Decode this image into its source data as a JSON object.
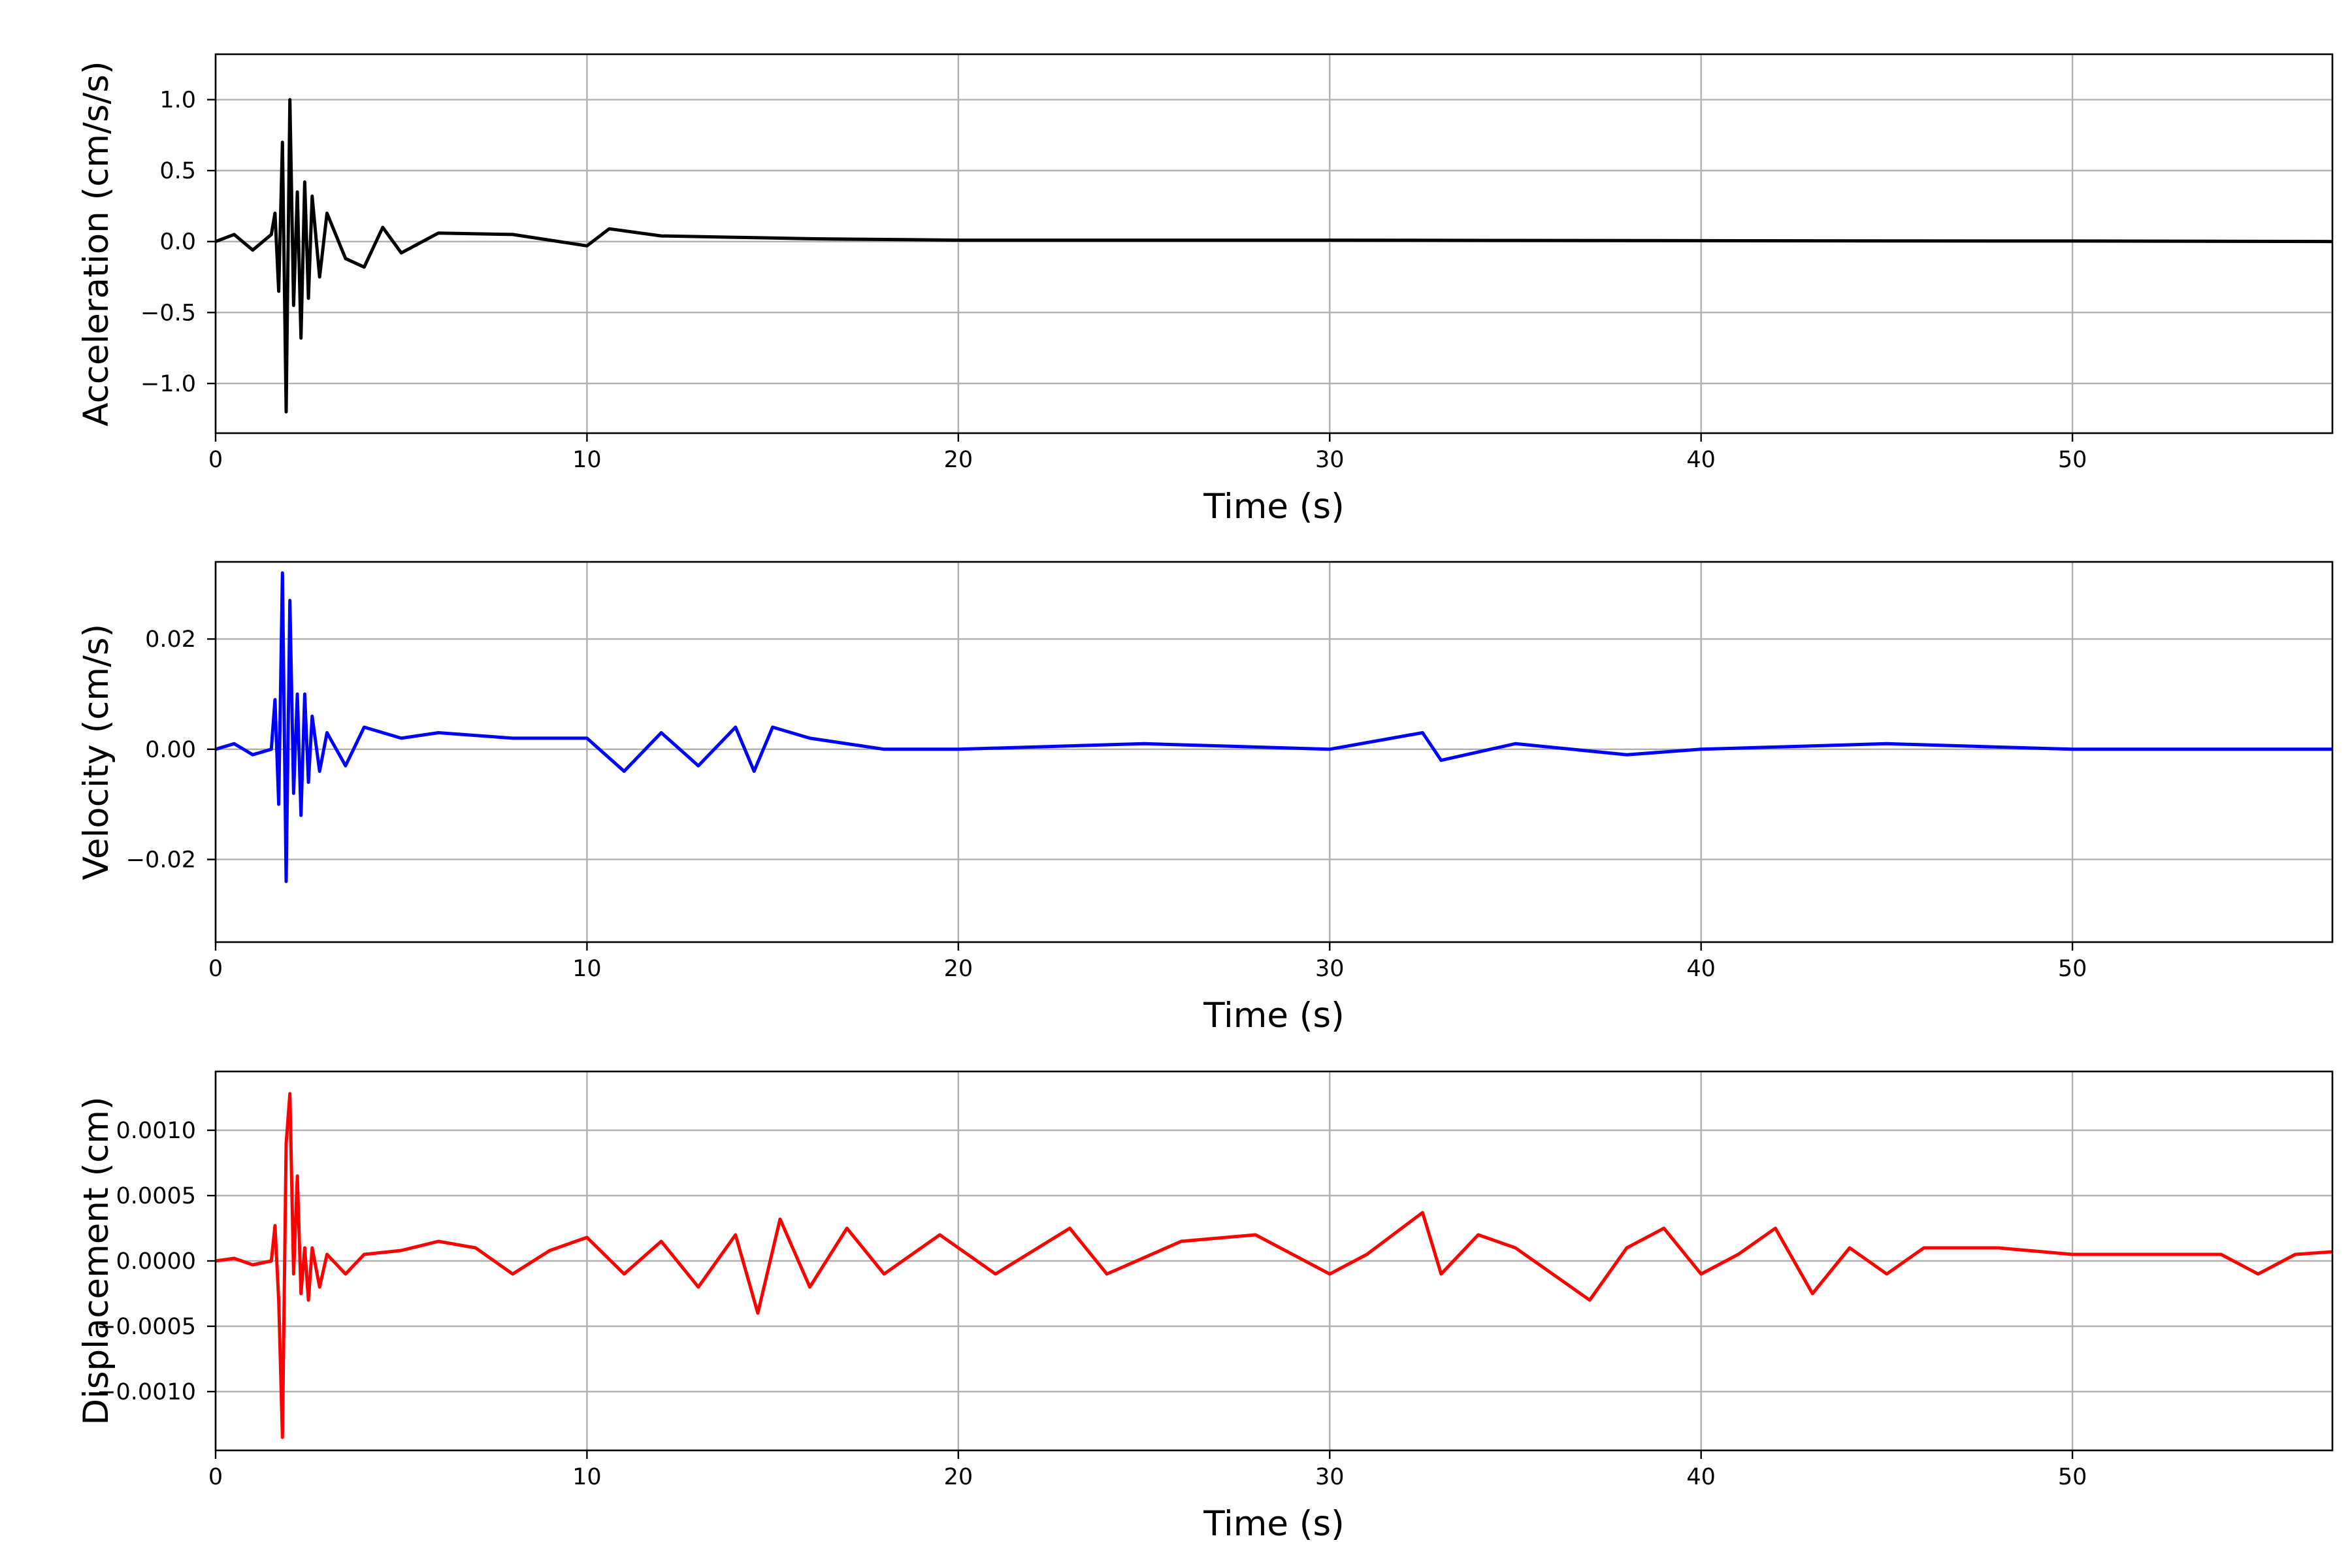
{
  "chart_data": [
    {
      "type": "line",
      "color": "#000000",
      "xlabel": "Time (s)",
      "ylabel": "Acceleration (cm/s/s)",
      "xlim": [
        0,
        57
      ],
      "ylim": [
        -1.35,
        1.32
      ],
      "grid": true,
      "xticks": [
        0,
        10,
        20,
        30,
        40,
        50
      ],
      "xtick_labels": [
        "0",
        "10",
        "20",
        "30",
        "40",
        "50"
      ],
      "yticks": [
        1.0,
        0.5,
        0.0,
        -0.5,
        -1.0
      ],
      "ytick_labels": [
        "1.0",
        "0.5",
        "0.0",
        "−0.5",
        "−1.0"
      ],
      "series": [
        {
          "x": [
            0,
            0.5,
            1.0,
            1.5,
            1.6,
            1.7,
            1.8,
            1.9,
            2.0,
            2.1,
            2.2,
            2.3,
            2.4,
            2.5,
            2.6,
            2.8,
            3.0,
            3.5,
            4.0,
            4.5,
            5.0,
            6.0,
            8.0,
            10.0,
            10.6,
            12.0,
            14.0,
            16.0,
            18.0,
            20.0,
            25.0,
            30.0,
            35.0,
            40.0,
            45.0,
            50.0,
            57.0
          ],
          "y": [
            0.0,
            0.05,
            -0.06,
            0.05,
            0.2,
            -0.35,
            0.7,
            -1.2,
            1.0,
            -0.45,
            0.35,
            -0.68,
            0.42,
            -0.4,
            0.32,
            -0.25,
            0.2,
            -0.12,
            -0.18,
            0.1,
            -0.08,
            0.06,
            0.05,
            -0.03,
            0.09,
            0.04,
            0.03,
            0.02,
            0.015,
            0.01,
            0.01,
            0.01,
            0.008,
            0.006,
            0.005,
            0.004,
            0.0
          ]
        }
      ]
    },
    {
      "type": "line",
      "color": "#0000ff",
      "xlabel": "Time (s)",
      "ylabel": "Velocity (cm/s)",
      "xlim": [
        0,
        57
      ],
      "ylim": [
        -0.035,
        0.034
      ],
      "grid": true,
      "xticks": [
        0,
        10,
        20,
        30,
        40,
        50
      ],
      "xtick_labels": [
        "0",
        "10",
        "20",
        "30",
        "40",
        "50"
      ],
      "yticks": [
        0.02,
        0.0,
        -0.02
      ],
      "ytick_labels": [
        "0.02",
        "0.00",
        "−0.02"
      ],
      "series": [
        {
          "x": [
            0,
            0.5,
            1.0,
            1.5,
            1.6,
            1.7,
            1.8,
            1.9,
            2.0,
            2.1,
            2.2,
            2.3,
            2.4,
            2.5,
            2.6,
            2.8,
            3.0,
            3.5,
            4.0,
            5.0,
            6.0,
            8.0,
            10.0,
            11.0,
            12.0,
            13.0,
            14.0,
            14.5,
            15.0,
            16.0,
            18.0,
            20.0,
            25.0,
            30.0,
            32.5,
            33.0,
            35.0,
            38.0,
            40.0,
            45.0,
            50.0,
            57.0
          ],
          "y": [
            0.0,
            0.001,
            -0.001,
            0.0,
            0.009,
            -0.01,
            0.032,
            -0.024,
            0.027,
            -0.008,
            0.01,
            -0.012,
            0.01,
            -0.006,
            0.006,
            -0.004,
            0.003,
            -0.003,
            0.004,
            0.002,
            0.003,
            0.002,
            0.002,
            -0.004,
            0.003,
            -0.003,
            0.004,
            -0.004,
            0.004,
            0.002,
            0.0,
            0.0,
            0.001,
            0.0,
            0.003,
            -0.002,
            0.001,
            -0.001,
            0.0,
            0.001,
            0.0,
            0.0
          ]
        }
      ]
    },
    {
      "type": "line",
      "color": "#ff0000",
      "xlabel": "Time (s)",
      "ylabel": "Displacement (cm)",
      "xlim": [
        0,
        57
      ],
      "ylim": [
        -0.00145,
        0.00145
      ],
      "grid": true,
      "xticks": [
        0,
        10,
        20,
        30,
        40,
        50
      ],
      "xtick_labels": [
        "0",
        "10",
        "20",
        "30",
        "40",
        "50"
      ],
      "yticks": [
        0.001,
        0.0005,
        0.0,
        -0.0005,
        -0.001
      ],
      "ytick_labels": [
        "0.0010",
        "0.0005",
        "0.0000",
        "−0.0005",
        "−0.0010"
      ],
      "series": [
        {
          "x": [
            0,
            0.5,
            1.0,
            1.5,
            1.6,
            1.7,
            1.8,
            1.9,
            2.0,
            2.1,
            2.2,
            2.3,
            2.4,
            2.5,
            2.6,
            2.8,
            3.0,
            3.5,
            4.0,
            5.0,
            6.0,
            7.0,
            8.0,
            9.0,
            10.0,
            11.0,
            12.0,
            13.0,
            14.0,
            14.6,
            15.2,
            16.0,
            17.0,
            18.0,
            19.5,
            21.0,
            23.0,
            24.0,
            26.0,
            28.0,
            30.0,
            31.0,
            32.5,
            33.0,
            34.0,
            35.0,
            37.0,
            38.0,
            39.0,
            40.0,
            41.0,
            42.0,
            43.0,
            44.0,
            45.0,
            46.0,
            48.0,
            50.0,
            52.0,
            54.0,
            55.0,
            56.0,
            57.0
          ],
          "y": [
            0.0,
            2e-05,
            -3e-05,
            0.0,
            0.00027,
            -0.0003,
            -0.00135,
            0.0009,
            0.00128,
            -0.0001,
            0.00065,
            -0.00025,
            0.0001,
            -0.0003,
            0.0001,
            -0.0002,
            5e-05,
            -0.0001,
            5e-05,
            8e-05,
            0.00015,
            0.0001,
            -0.0001,
            8e-05,
            0.00018,
            -0.0001,
            0.00015,
            -0.0002,
            0.0002,
            -0.0004,
            0.00032,
            -0.0002,
            0.00025,
            -0.0001,
            0.0002,
            -0.0001,
            0.00025,
            -0.0001,
            0.00015,
            0.0002,
            -0.0001,
            5e-05,
            0.00037,
            -0.0001,
            0.0002,
            0.0001,
            -0.0003,
            0.0001,
            0.00025,
            -0.0001,
            5e-05,
            0.00025,
            -0.00025,
            0.0001,
            -0.0001,
            0.0001,
            0.0001,
            5e-05,
            5e-05,
            5e-05,
            -0.0001,
            5e-05,
            7e-05
          ]
        }
      ]
    }
  ]
}
